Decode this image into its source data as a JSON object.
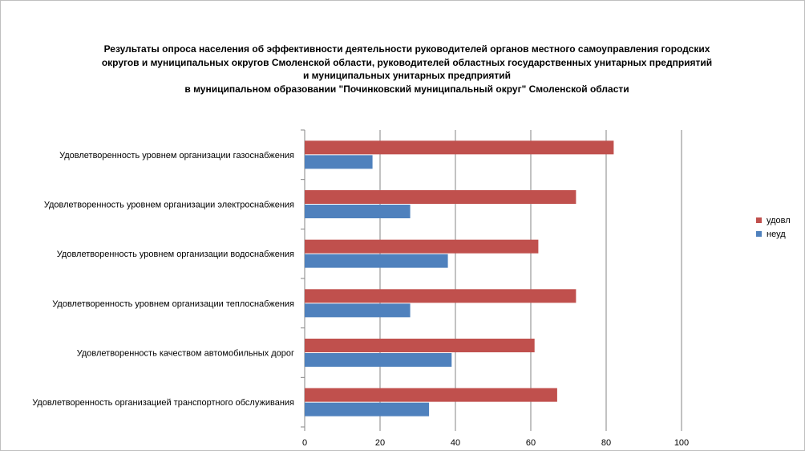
{
  "chart_data": {
    "type": "bar",
    "orientation": "horizontal",
    "title_lines": [
      "Результаты опроса населения об эффективности деятельности руководителей органов местного самоуправления городских",
      "округов и муниципальных округов Смоленской области, руководителей областных государственных унитарных предприятий",
      "и муниципальных унитарных предприятий",
      "в муниципальном образовании \"Починковский муниципальный округ\" Смоленской области"
    ],
    "categories": [
      "Удовлетворенность уровнем организации газоснабжения",
      "Удовлетворенность уровнем организации электроснабжения",
      "Удовлетворенность уровнем организации водоснабжения",
      "Удовлетворенность уровнем организации теплоснабжения",
      "Удовлетворенность качеством автомобильных дорог",
      "Удовлетворенность организацией транспортного обслуживания"
    ],
    "series": [
      {
        "name": "удовл",
        "color": "#c0504d",
        "values": [
          82,
          72,
          62,
          72,
          61,
          67
        ]
      },
      {
        "name": "неуд",
        "color": "#4f81bd",
        "values": [
          18,
          28,
          38,
          28,
          39,
          33
        ]
      }
    ],
    "xlim": [
      0,
      100
    ],
    "xticks": [
      "0",
      "20",
      "40",
      "60",
      "80",
      "100"
    ],
    "grid": "vertical",
    "legend_position": "right"
  }
}
